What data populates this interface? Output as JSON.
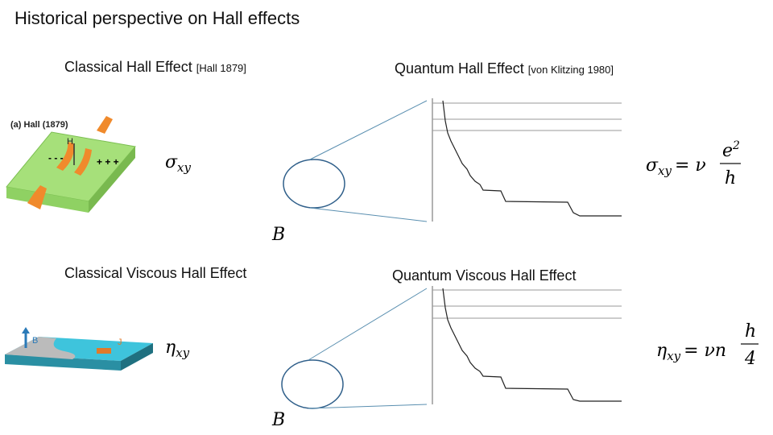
{
  "title": "Historical perspective on Hall effects",
  "classical": {
    "heading": "Classical Hall Effect",
    "citation": "[Hall 1879]",
    "figure_label": "(a) Hall (1879)",
    "field_label": "H",
    "y_symbol": "σ",
    "y_subscript": "xy",
    "x_label": "B"
  },
  "quantum": {
    "heading": "Quantum Hall Effect",
    "citation": "[von Klitzing 1980]",
    "lhs_symbol": "σ",
    "lhs_subscript": "xy",
    "rhs": "= ν",
    "numerator": "e",
    "numerator_superscript": "2",
    "denominator": "h"
  },
  "classical_viscous": {
    "heading": "Classical Viscous Hall Effect",
    "field_label": "B",
    "current_label": "J",
    "y_symbol": "η",
    "y_subscript": "xy",
    "x_label": "B"
  },
  "quantum_viscous": {
    "heading": "Quantum Viscous Hall Effect",
    "lhs_symbol": "η",
    "lhs_subscript": "xy",
    "rhs": "= νn",
    "numerator": "h",
    "denominator": "4"
  }
}
